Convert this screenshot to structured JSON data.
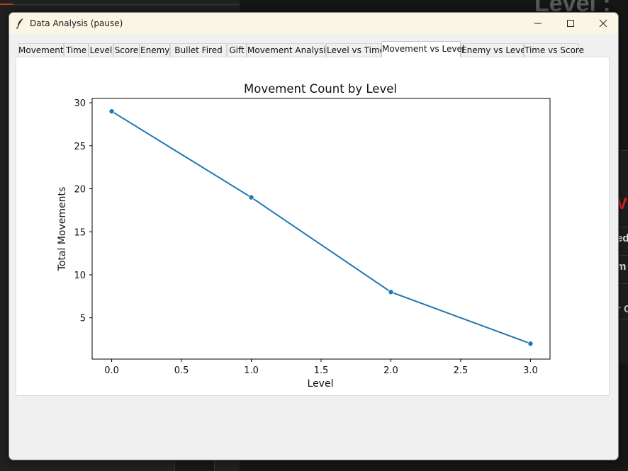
{
  "window": {
    "title": "Data Analysis (pause)",
    "icon": "feather-icon"
  },
  "tabs": [
    {
      "label": "Movement",
      "active": false
    },
    {
      "label": "Time",
      "active": false
    },
    {
      "label": "Level",
      "active": false
    },
    {
      "label": "Score",
      "active": false
    },
    {
      "label": "Enemy",
      "active": false
    },
    {
      "label": "Bullet Fired",
      "active": false
    },
    {
      "label": "Gift",
      "active": false
    },
    {
      "label": "Movement Analysis",
      "active": false
    },
    {
      "label": "Level vs Time",
      "active": false
    },
    {
      "label": "Movement vs Level",
      "active": true
    },
    {
      "label": "Enemy vs Level",
      "active": false
    },
    {
      "label": "Time vs Score",
      "active": false
    }
  ],
  "background": {
    "title_fragment": "Level :",
    "fragments": [
      "VE",
      "ed",
      "m",
      "r C"
    ]
  },
  "chart_data": {
    "type": "line",
    "title": "Movement Count by Level",
    "xlabel": "Level",
    "ylabel": "Total Movements",
    "x": [
      0.0,
      1.0,
      2.0,
      3.0
    ],
    "series": [
      {
        "values": [
          29,
          19,
          8,
          2
        ]
      }
    ],
    "xlim": [
      -0.14,
      3.14
    ],
    "ylim": [
      0.2,
      30.5
    ],
    "xticks": [
      "0.0",
      "0.5",
      "1.0",
      "1.5",
      "2.0",
      "2.5",
      "3.0"
    ],
    "xtick_values": [
      0.0,
      0.5,
      1.0,
      1.5,
      2.0,
      2.5,
      3.0
    ],
    "yticks": [
      "5",
      "10",
      "15",
      "20",
      "25",
      "30"
    ],
    "ytick_values": [
      5,
      10,
      15,
      20,
      25,
      30
    ],
    "marker": "circle",
    "grid": false,
    "line_color": "#1f77b4"
  }
}
